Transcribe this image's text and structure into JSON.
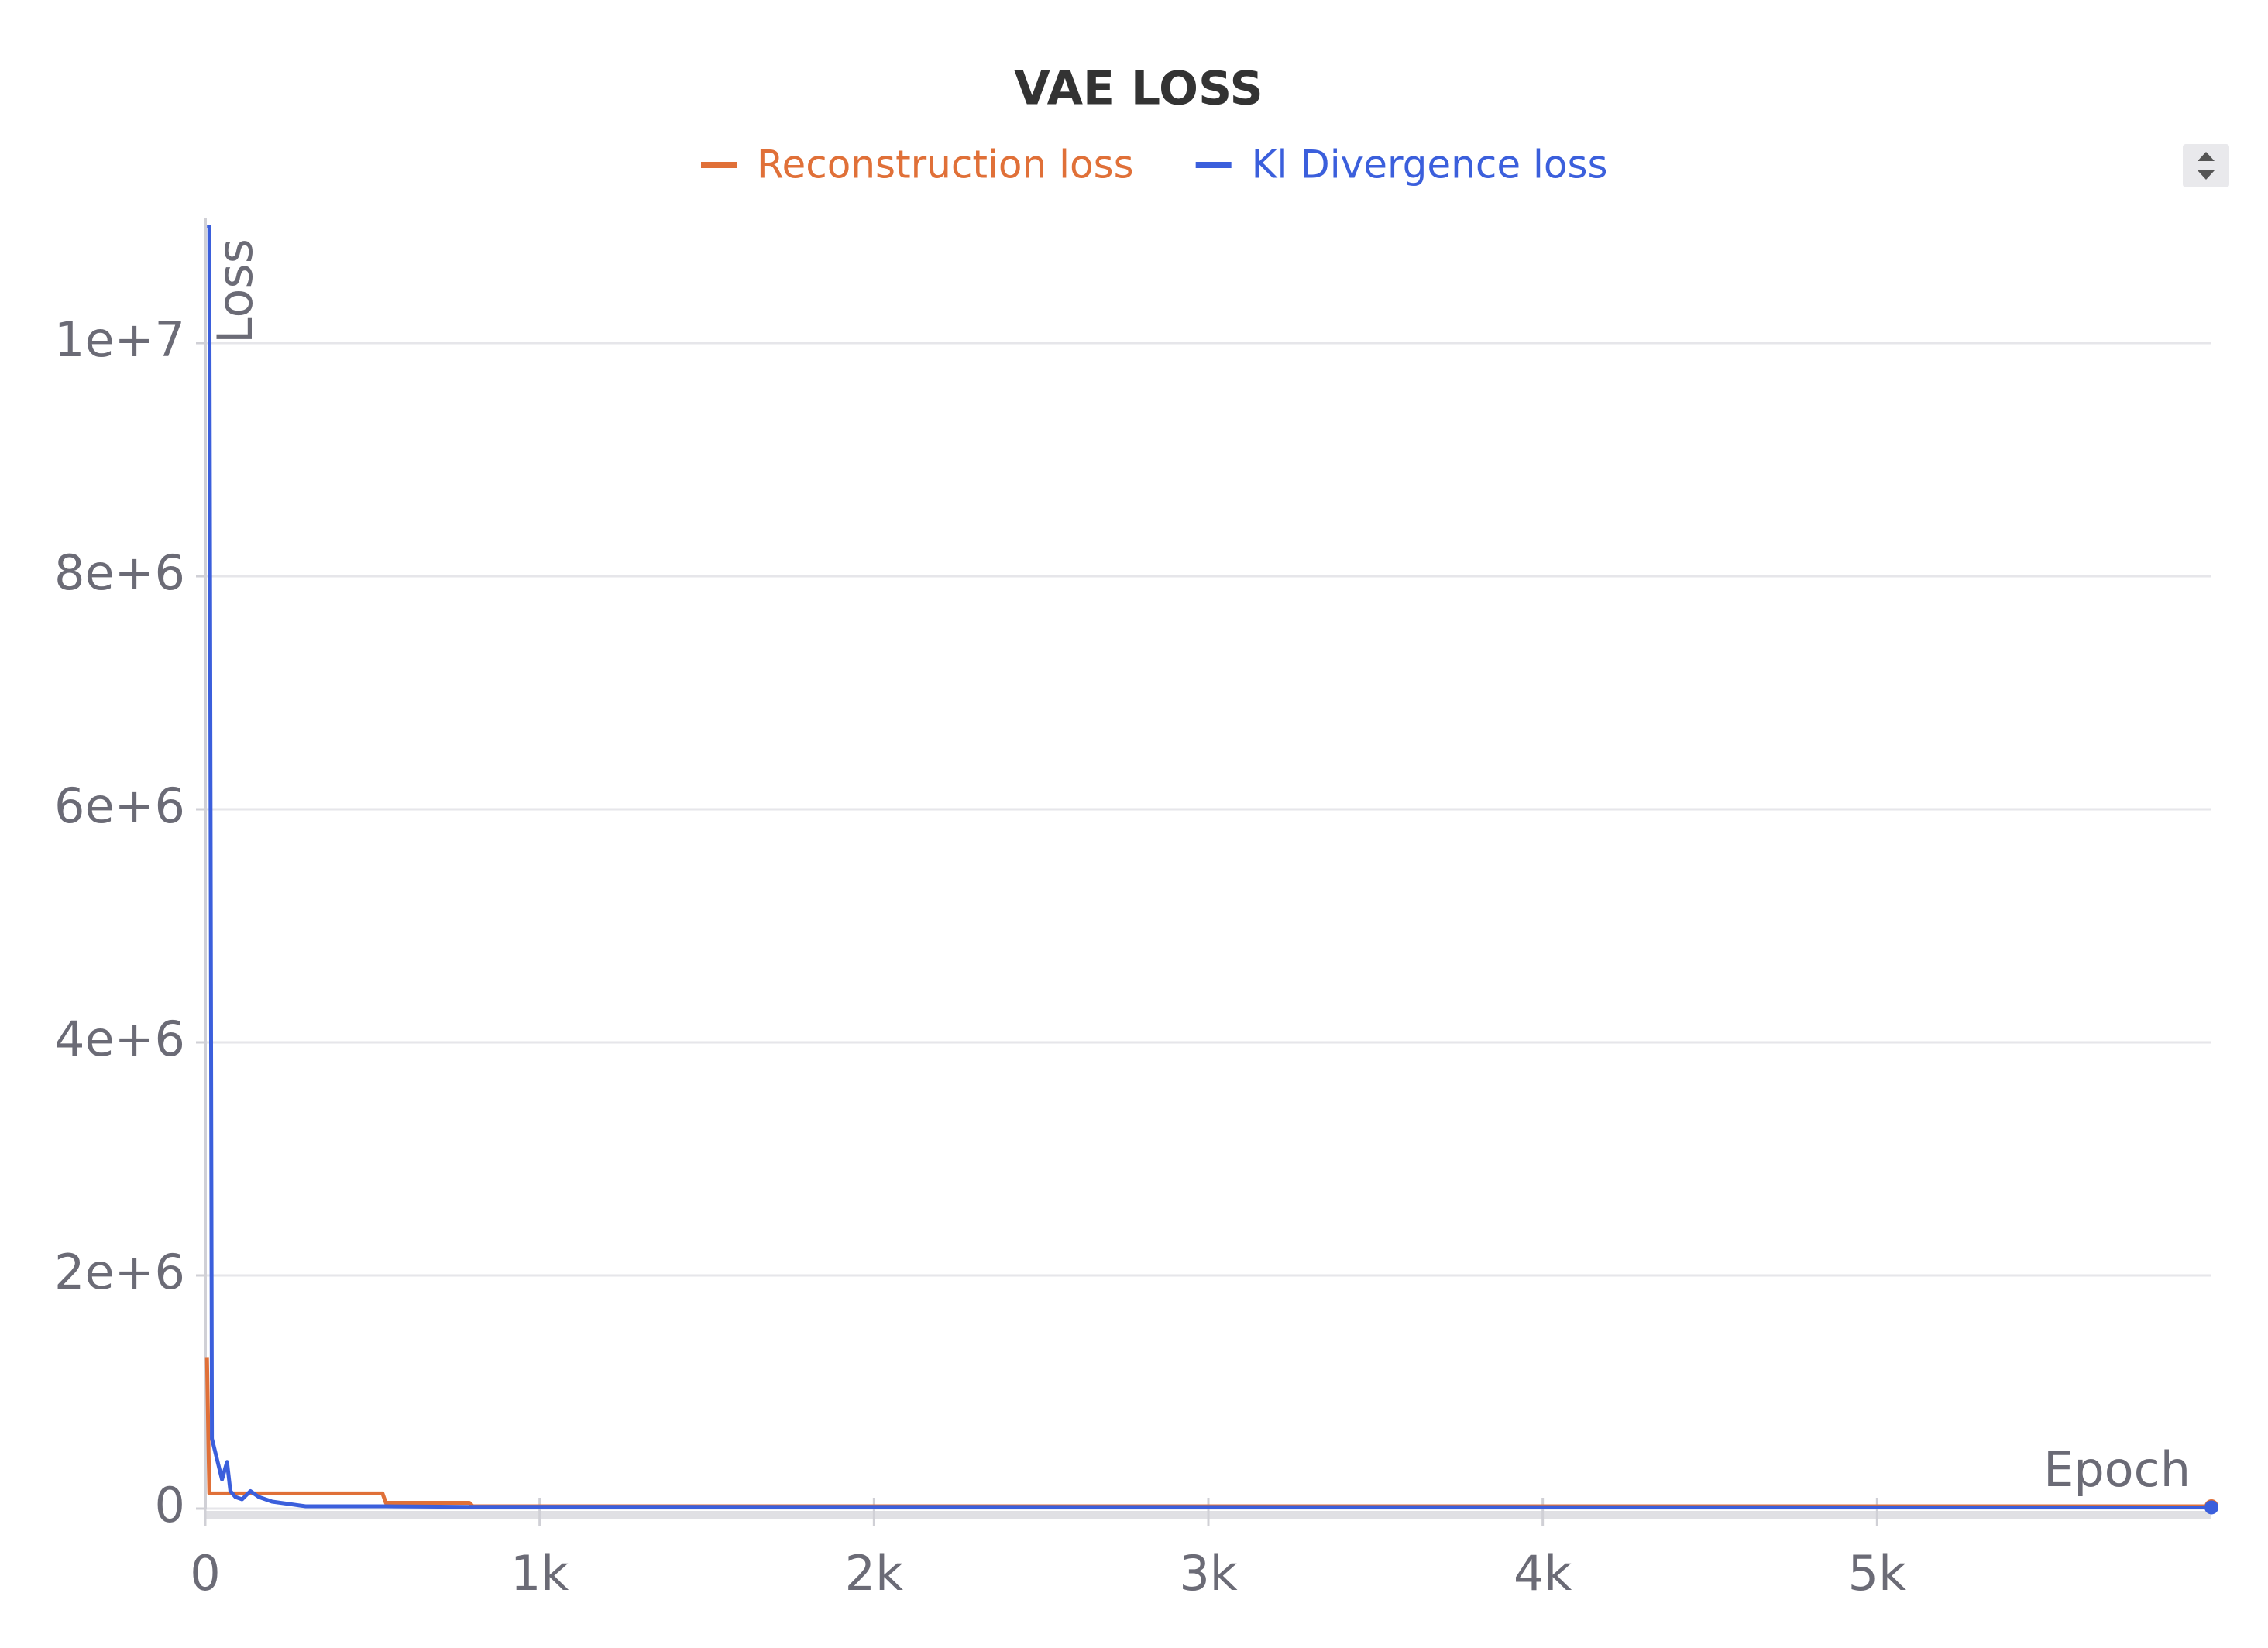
{
  "chart_data": {
    "type": "line",
    "title": "VAE LOSS",
    "y_label": "Loss",
    "x_label": "Epoch",
    "x": [
      5,
      12,
      20,
      50,
      65,
      75,
      90,
      110,
      135,
      160,
      200,
      300,
      530,
      540,
      790,
      800,
      6000
    ],
    "series": [
      {
        "name": "Reconstruction loss",
        "color": "#e07038",
        "values": [
          1300000,
          130000,
          130000,
          130000,
          130000,
          130000,
          130000,
          130000,
          130000,
          130000,
          130000,
          130000,
          130000,
          50000,
          50000,
          20000,
          20000
        ]
      },
      {
        "name": "Kl Divergence loss",
        "color": "#3b5fdc",
        "values": [
          11000000,
          11000000,
          600000,
          250000,
          400000,
          150000,
          100000,
          80000,
          150000,
          100000,
          60000,
          20000,
          20000,
          20000,
          15000,
          15000,
          10000
        ]
      }
    ],
    "xlim": [
      0,
      6000
    ],
    "xticks": [
      0,
      {
        "value": 1000,
        "label": "1k"
      },
      {
        "value": 2000,
        "label": "2k"
      },
      {
        "value": 3000,
        "label": "3k"
      },
      {
        "value": 4000,
        "label": "4k"
      },
      {
        "value": 5000,
        "label": "5k"
      }
    ],
    "ylim": [
      0,
      11070000
    ],
    "yticks": [
      0,
      {
        "value": 2000000,
        "label": "2e+6"
      },
      {
        "value": 4000000,
        "label": "4e+6"
      },
      {
        "value": 6000000,
        "label": "6e+6"
      },
      {
        "value": 8000000,
        "label": "8e+6"
      },
      {
        "value": 10000000,
        "label": "1e+7"
      }
    ],
    "grid": true,
    "legend": "top"
  }
}
